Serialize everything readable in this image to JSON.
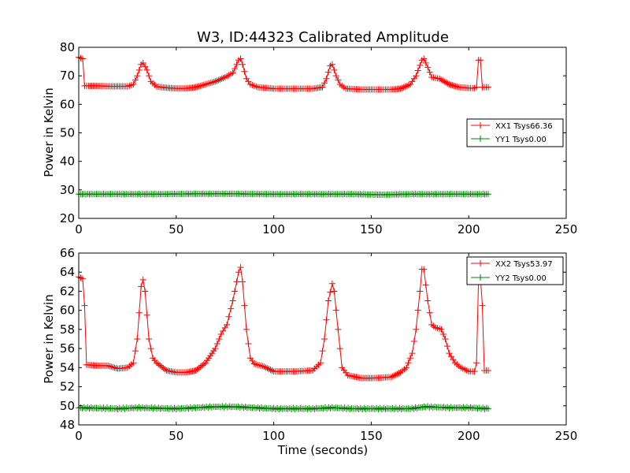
{
  "chart_data": [
    {
      "type": "line",
      "title": "W3, ID:44323 Calibrated Amplitude",
      "xlabel": "",
      "ylabel": "Power in Kelvin",
      "xlim": [
        0,
        250
      ],
      "ylim": [
        20,
        80
      ],
      "xticks": [
        "0",
        "50",
        "100",
        "150",
        "200",
        "250"
      ],
      "yticks": [
        "20",
        "30",
        "40",
        "50",
        "60",
        "70",
        "80"
      ],
      "legend": {
        "placement": "center-right"
      },
      "series": [
        {
          "name": "XX1 Tsys66.36",
          "color": "#ff0000",
          "marker": "+",
          "points": [
            [
              0,
              76.5
            ],
            [
              2,
              76
            ],
            [
              3,
              66.5
            ],
            [
              5,
              66.5
            ],
            [
              10,
              66.5
            ],
            [
              15,
              66.3
            ],
            [
              20,
              66.3
            ],
            [
              25,
              66.3
            ],
            [
              28,
              67
            ],
            [
              30,
              70
            ],
            [
              32,
              74
            ],
            [
              33,
              74.5
            ],
            [
              35,
              72
            ],
            [
              37,
              68
            ],
            [
              40,
              66.2
            ],
            [
              45,
              65.8
            ],
            [
              50,
              65.6
            ],
            [
              55,
              65.6
            ],
            [
              60,
              66
            ],
            [
              65,
              67
            ],
            [
              70,
              68
            ],
            [
              75,
              69.5
            ],
            [
              79,
              71
            ],
            [
              82,
              75.5
            ],
            [
              83,
              76
            ],
            [
              84,
              74
            ],
            [
              86,
              69
            ],
            [
              88,
              67
            ],
            [
              92,
              66
            ],
            [
              100,
              65.5
            ],
            [
              110,
              65.5
            ],
            [
              120,
              65.5
            ],
            [
              125,
              66
            ],
            [
              127,
              69
            ],
            [
              129,
              73.5
            ],
            [
              130,
              74
            ],
            [
              132,
              70
            ],
            [
              134,
              67
            ],
            [
              137,
              65.5
            ],
            [
              145,
              65.2
            ],
            [
              150,
              65.2
            ],
            [
              160,
              65.2
            ],
            [
              165,
              65.5
            ],
            [
              170,
              67
            ],
            [
              173,
              70
            ],
            [
              176,
              75.5
            ],
            [
              177,
              76
            ],
            [
              179,
              73
            ],
            [
              181,
              69.5
            ],
            [
              185,
              69
            ],
            [
              190,
              67
            ],
            [
              195,
              66
            ],
            [
              200,
              65.7
            ],
            [
              203,
              65.7
            ],
            [
              204,
              66
            ],
            [
              205,
              75.5
            ],
            [
              206,
              75.5
            ],
            [
              207,
              66
            ],
            [
              210,
              66
            ]
          ]
        },
        {
          "name": "YY1 Tsys0.00",
          "color": "#008000",
          "marker": "+",
          "points": [
            [
              0,
              28.5
            ],
            [
              20,
              28.5
            ],
            [
              40,
              28.5
            ],
            [
              60,
              28.6
            ],
            [
              80,
              28.6
            ],
            [
              100,
              28.5
            ],
            [
              120,
              28.5
            ],
            [
              140,
              28.5
            ],
            [
              155,
              28.3
            ],
            [
              170,
              28.5
            ],
            [
              190,
              28.5
            ],
            [
              210,
              28.5
            ]
          ]
        }
      ]
    },
    {
      "type": "line",
      "title": "",
      "xlabel": "Time (seconds)",
      "ylabel": "Power in Kelvin",
      "xlim": [
        0,
        250
      ],
      "ylim": [
        48,
        66
      ],
      "xticks": [
        "0",
        "50",
        "100",
        "150",
        "200",
        "250"
      ],
      "yticks": [
        "48",
        "50",
        "52",
        "54",
        "56",
        "58",
        "60",
        "62",
        "64",
        "66"
      ],
      "legend": {
        "placement": "top-right"
      },
      "series": [
        {
          "name": "XX2 Tsys53.97",
          "color": "#ff0000",
          "marker": "+",
          "points": [
            [
              0,
              63.5
            ],
            [
              2,
              63.3
            ],
            [
              3,
              60.5
            ],
            [
              4,
              54.3
            ],
            [
              10,
              54.2
            ],
            [
              15,
              54.2
            ],
            [
              20,
              53.9
            ],
            [
              25,
              54
            ],
            [
              28,
              54.5
            ],
            [
              30,
              57
            ],
            [
              32,
              62.5
            ],
            [
              33,
              63.2
            ],
            [
              34,
              62
            ],
            [
              36,
              57
            ],
            [
              38,
              55
            ],
            [
              40,
              54.5
            ],
            [
              45,
              53.7
            ],
            [
              50,
              53.5
            ],
            [
              55,
              53.5
            ],
            [
              60,
              53.7
            ],
            [
              65,
              54.5
            ],
            [
              70,
              56
            ],
            [
              73,
              57.5
            ],
            [
              76,
              58.5
            ],
            [
              79,
              61
            ],
            [
              82,
              64
            ],
            [
              83,
              64.5
            ],
            [
              84,
              63
            ],
            [
              86,
              58
            ],
            [
              88,
              55
            ],
            [
              90,
              54.4
            ],
            [
              95,
              54.1
            ],
            [
              100,
              53.6
            ],
            [
              110,
              53.6
            ],
            [
              120,
              53.7
            ],
            [
              124,
              54.5
            ],
            [
              126,
              57
            ],
            [
              128,
              61
            ],
            [
              130,
              62.8
            ],
            [
              131,
              62
            ],
            [
              133,
              58
            ],
            [
              135,
              54
            ],
            [
              138,
              53.2
            ],
            [
              145,
              52.9
            ],
            [
              150,
              52.9
            ],
            [
              160,
              53
            ],
            [
              165,
              53.5
            ],
            [
              168,
              54
            ],
            [
              171,
              55.5
            ],
            [
              173,
              58
            ],
            [
              175,
              62
            ],
            [
              176,
              64.3
            ],
            [
              177,
              64.3
            ],
            [
              179,
              61
            ],
            [
              181,
              58.5
            ],
            [
              183,
              58.2
            ],
            [
              186,
              58
            ],
            [
              188,
              57
            ],
            [
              190,
              55.5
            ],
            [
              193,
              54.5
            ],
            [
              196,
              54
            ],
            [
              200,
              53.6
            ],
            [
              203,
              53.6
            ],
            [
              204,
              54.5
            ],
            [
              205,
              63
            ],
            [
              206,
              63.5
            ],
            [
              207,
              60.5
            ],
            [
              208,
              53.7
            ],
            [
              210,
              53.7
            ]
          ]
        },
        {
          "name": "YY2 Tsys0.00",
          "color": "#008000",
          "marker": "+",
          "points": [
            [
              0,
              49.8
            ],
            [
              20,
              49.7
            ],
            [
              30,
              49.8
            ],
            [
              50,
              49.7
            ],
            [
              60,
              49.8
            ],
            [
              70,
              49.9
            ],
            [
              80,
              49.9
            ],
            [
              90,
              49.8
            ],
            [
              100,
              49.7
            ],
            [
              120,
              49.7
            ],
            [
              130,
              49.8
            ],
            [
              140,
              49.7
            ],
            [
              160,
              49.7
            ],
            [
              170,
              49.7
            ],
            [
              178,
              49.9
            ],
            [
              190,
              49.8
            ],
            [
              200,
              49.8
            ],
            [
              210,
              49.7
            ]
          ]
        }
      ]
    }
  ]
}
